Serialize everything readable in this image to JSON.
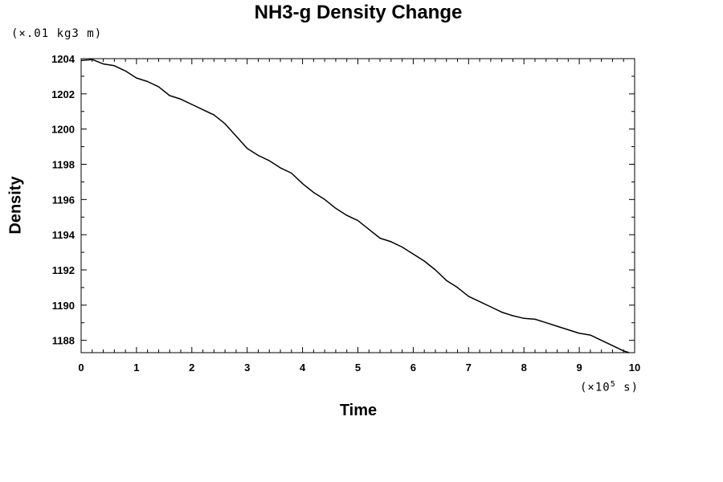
{
  "chart_data": {
    "type": "line",
    "title": "NH3-g Density Change",
    "xlabel": "Time",
    "ylabel": "Density",
    "x_unit_prefix": "(×10",
    "x_unit_exp": "5",
    "x_unit_suffix": " s)",
    "y_unit": "(×.01 kg3 m)",
    "xlim": [
      0,
      10
    ],
    "ylim": [
      1187.3,
      1204.0
    ],
    "xticks": [
      "0",
      "1",
      "2",
      "3",
      "4",
      "5",
      "6",
      "7",
      "8",
      "9",
      "10"
    ],
    "yticks": [
      "1188",
      "1190",
      "1192",
      "1194",
      "1196",
      "1198",
      "1200",
      "1202",
      "1204"
    ],
    "grid": false,
    "series": [
      {
        "color": "#000000",
        "x": [
          0,
          0.2,
          0.4,
          0.6,
          0.8,
          1.0,
          1.2,
          1.4,
          1.6,
          1.8,
          2.0,
          2.2,
          2.4,
          2.6,
          2.8,
          3.0,
          3.2,
          3.4,
          3.6,
          3.8,
          4.0,
          4.2,
          4.4,
          4.6,
          4.8,
          5.0,
          5.2,
          5.4,
          5.6,
          5.8,
          6.0,
          6.2,
          6.4,
          6.6,
          6.8,
          7.0,
          7.2,
          7.4,
          7.6,
          7.8,
          8.0,
          8.2,
          8.4,
          8.6,
          8.8,
          9.0,
          9.2,
          9.4,
          9.6,
          9.8,
          9.9
        ],
        "y": [
          1203.9,
          1203.95,
          1203.7,
          1203.6,
          1203.3,
          1202.9,
          1202.7,
          1202.4,
          1201.9,
          1201.7,
          1201.4,
          1201.1,
          1200.8,
          1200.3,
          1199.6,
          1198.9,
          1198.5,
          1198.2,
          1197.8,
          1197.5,
          1196.9,
          1196.4,
          1196.0,
          1195.5,
          1195.1,
          1194.8,
          1194.3,
          1193.8,
          1193.6,
          1193.3,
          1192.9,
          1192.5,
          1192.0,
          1191.4,
          1191.0,
          1190.5,
          1190.2,
          1189.9,
          1189.6,
          1189.4,
          1189.25,
          1189.2,
          1189.0,
          1188.8,
          1188.6,
          1188.4,
          1188.3,
          1188.0,
          1187.7,
          1187.4,
          1187.3
        ]
      }
    ]
  }
}
